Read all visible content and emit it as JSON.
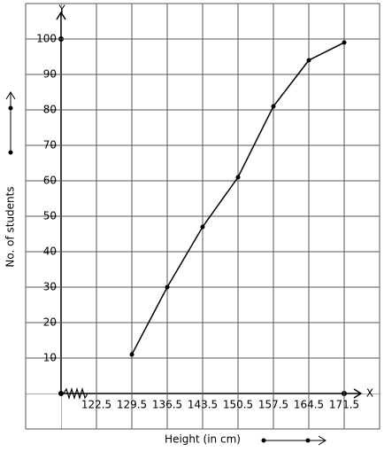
{
  "chart_data": {
    "type": "line",
    "x_label": "Height (in cm)",
    "y_label": "No. of students",
    "x_axis_letter": "X",
    "y_axis_letter": "Y",
    "x": [
      129.5,
      136.5,
      143.5,
      150.5,
      157.5,
      164.5,
      171.5
    ],
    "series": [
      {
        "color": "#000000",
        "values": [
          11,
          30,
          47,
          61,
          81,
          94,
          99
        ]
      }
    ],
    "xlim": [
      108.5,
      178.5
    ],
    "ylim": [
      -10,
      110
    ],
    "xticks": [
      122.5,
      129.5,
      136.5,
      143.5,
      150.5,
      157.5,
      164.5,
      171.5
    ],
    "yticks": [
      10,
      20,
      30,
      40,
      50,
      60,
      70,
      80,
      90,
      100
    ],
    "grid": true
  }
}
